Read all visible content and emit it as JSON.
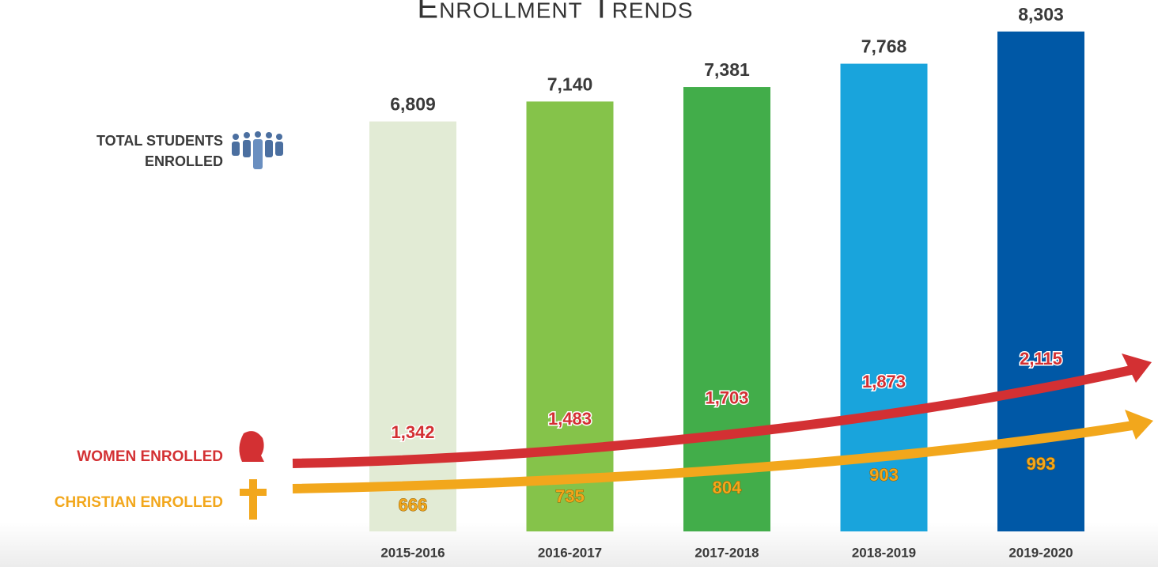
{
  "chart_data": {
    "type": "bar",
    "title": "Enrollment Trends",
    "categories": [
      "2015-2016",
      "2016-2017",
      "2017-2018",
      "2018-2019",
      "2019-2020"
    ],
    "ylim": [
      0,
      8800
    ],
    "series": [
      {
        "name": "TOTAL STUDENTS ENROLLED",
        "colors": [
          "#e2ebd5",
          "#85c34a",
          "#42ad4a",
          "#19a4dc",
          "#0058a6"
        ],
        "values": [
          6809,
          7140,
          7381,
          7768,
          8303
        ],
        "value_labels": [
          "6,809",
          "7,140",
          "7,381",
          "7,768",
          "8,303"
        ]
      },
      {
        "name": "WOMEN ENROLLED",
        "color": "#d33033",
        "values": [
          1342,
          1483,
          1703,
          1873,
          2115
        ],
        "value_labels": [
          "1,342",
          "1,483",
          "1,703",
          "1,873",
          "2,115"
        ]
      },
      {
        "name": "CHRISTIAN ENROLLED",
        "color": "#f2a71c",
        "values": [
          666,
          735,
          804,
          903,
          993
        ],
        "value_labels": [
          "666",
          "735",
          "804",
          "903",
          "993"
        ]
      }
    ]
  }
}
